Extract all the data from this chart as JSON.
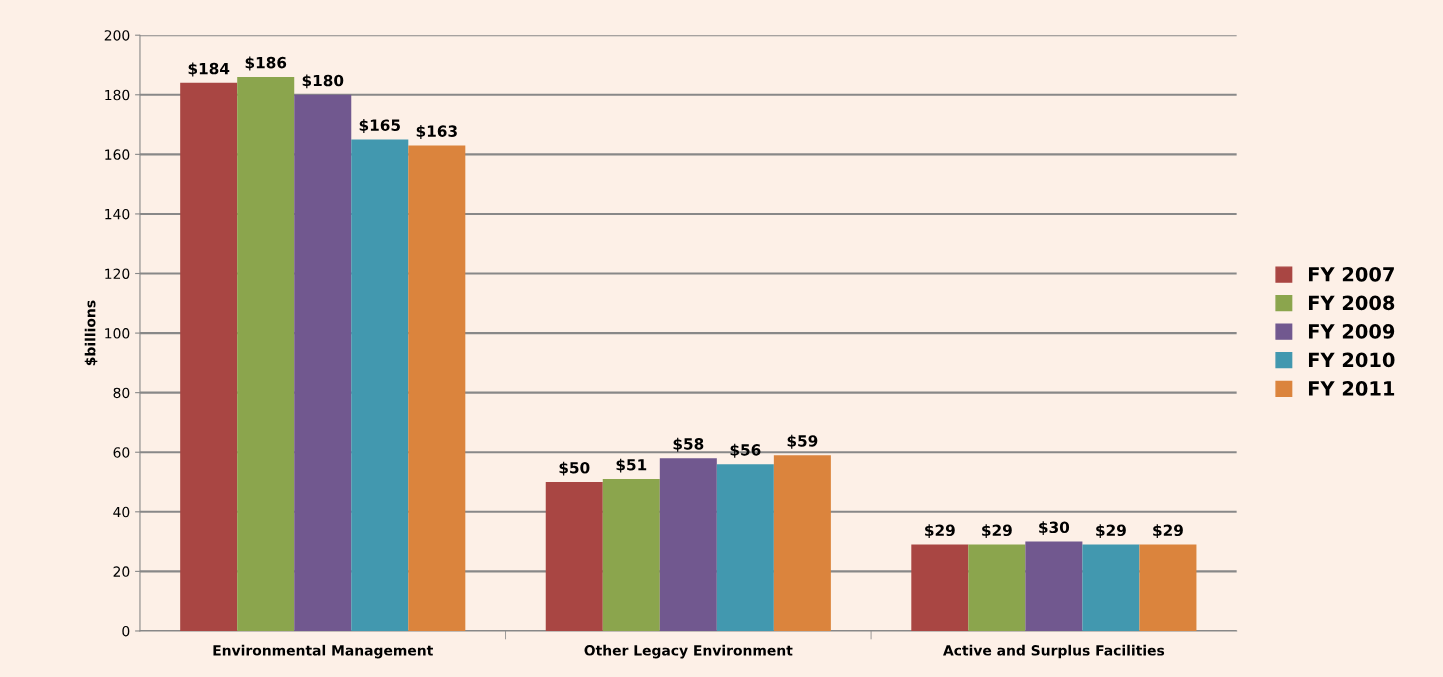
{
  "chart_data": {
    "type": "bar",
    "ylabel": "$billions",
    "categories": [
      "Environmental Management",
      "Other Legacy Environment",
      "Active and Surplus Facilities"
    ],
    "series": [
      {
        "name": "FY 2007",
        "color": "#a94643",
        "values": [
          184,
          50,
          29
        ],
        "value_labels": [
          "$184",
          "$50",
          "$29"
        ]
      },
      {
        "name": "FY 2008",
        "color": "#8ba54d",
        "values": [
          186,
          51,
          29
        ],
        "value_labels": [
          "$186",
          "$51",
          "$29"
        ]
      },
      {
        "name": "FY 2009",
        "color": "#71588f",
        "values": [
          180,
          58,
          30
        ],
        "value_labels": [
          "$180",
          "$58",
          "$30"
        ]
      },
      {
        "name": "FY 2010",
        "color": "#4298af",
        "values": [
          165,
          56,
          29
        ],
        "value_labels": [
          "$165",
          "$56",
          "$29"
        ]
      },
      {
        "name": "FY 2011",
        "color": "#db843d",
        "values": [
          163,
          59,
          29
        ],
        "value_labels": [
          "$163",
          "$59",
          "$29"
        ]
      }
    ],
    "ylim": [
      0,
      200
    ],
    "yticks": [
      0,
      20,
      40,
      60,
      80,
      100,
      120,
      140,
      160,
      180,
      200
    ],
    "grid": "y",
    "legend": "right"
  }
}
